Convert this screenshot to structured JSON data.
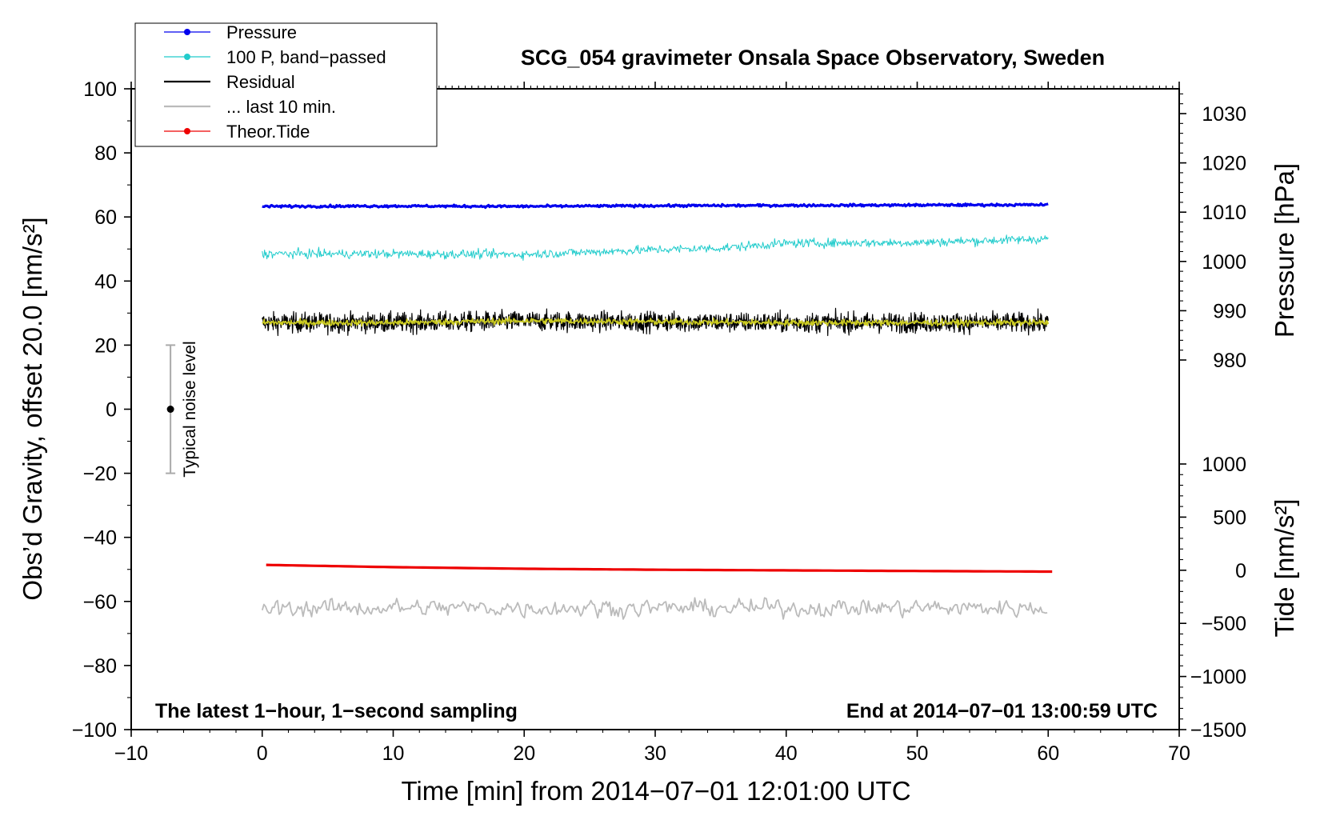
{
  "chart_data": {
    "type": "line",
    "title": "SCG_054 gravimeter Onsala Space Observatory, Sweden",
    "xlabel": "Time [min] from 2014−07−01 12:01:00 UTC",
    "ylabel_left": "Obs’d Gravity, offset 20.0 [nm/s²]",
    "ylabel_right_pressure": "Pressure [hPa]",
    "ylabel_right_tide": "Tide [nm/s²]",
    "xlim": [
      -10,
      70
    ],
    "ylim": [
      -100,
      100
    ],
    "pressure_axis_range": [
      975,
      1035
    ],
    "tide_axis_range": [
      -1500,
      1000
    ],
    "x_ticks": [
      "−10",
      "0",
      "10",
      "20",
      "30",
      "40",
      "50",
      "60",
      "70"
    ],
    "y_ticks": [
      "−100",
      "−80",
      "−60",
      "−40",
      "−20",
      "0",
      "20",
      "40",
      "60",
      "80",
      "100"
    ],
    "pressure_ticks": [
      "980",
      "990",
      "1000",
      "1010",
      "1020",
      "1030"
    ],
    "tide_ticks": [
      "−1500",
      "−1000",
      "−500",
      "0",
      "500",
      "1000"
    ],
    "annotation_left": "The latest 1−hour, 1−second sampling",
    "annotation_right": "End at 2014−07−01 13:00:59 UTC",
    "noise_level": {
      "label": "Typical noise level",
      "x": -7,
      "center": 0,
      "low": -20,
      "high": 20
    },
    "legend_position": "top-left",
    "legend": [
      {
        "label": "Pressure",
        "color": "#0000ee",
        "marker": true
      },
      {
        "label": "100 P, band−passed",
        "color": "#22cccc",
        "marker": true
      },
      {
        "label": "Residual",
        "color": "#000000",
        "marker": false
      },
      {
        "label": "... last 10 min.",
        "color": "#bbbbbb",
        "marker": false
      },
      {
        "label": "Theor.Tide",
        "color": "#ee0000",
        "marker": true
      }
    ],
    "series": [
      {
        "name": "Pressure",
        "color": "#0000ee",
        "x": [
          0,
          10,
          20,
          30,
          40,
          50,
          60
        ],
        "y": [
          63.3,
          63.4,
          63.3,
          63.5,
          63.6,
          63.7,
          63.8
        ]
      },
      {
        "name": "100 P, band−passed",
        "color": "#22cccc",
        "x": [
          0,
          10,
          20,
          30,
          35,
          40,
          50,
          60
        ],
        "y": [
          48.5,
          48.5,
          48.3,
          49.8,
          50.3,
          51.8,
          52.0,
          53.2
        ]
      },
      {
        "name": "Residual",
        "color": "#000000",
        "x": [
          0,
          10,
          20,
          30,
          40,
          50,
          60
        ],
        "y": [
          27,
          27,
          27.5,
          27.3,
          27,
          27,
          27
        ]
      },
      {
        "name": "... last 10 min.",
        "color": "#bbbbbb",
        "x": [
          0,
          10,
          20,
          30,
          40,
          50,
          60
        ],
        "y": [
          -62,
          -62,
          -62,
          -62,
          -62,
          -62,
          -62
        ]
      },
      {
        "name": "Theor.Tide",
        "color": "#ee0000",
        "x": [
          0.3,
          10,
          20,
          30,
          40,
          50,
          60.5
        ],
        "y": [
          -48.6,
          -49.3,
          -49.8,
          -50.1,
          -50.3,
          -50.5,
          -50.7
        ]
      },
      {
        "name": "",
        "color": "#cccc22",
        "x": [
          0,
          10,
          20,
          30,
          40,
          50,
          60
        ],
        "y": [
          27,
          27,
          27.6,
          27.3,
          27,
          27,
          27
        ]
      }
    ]
  }
}
